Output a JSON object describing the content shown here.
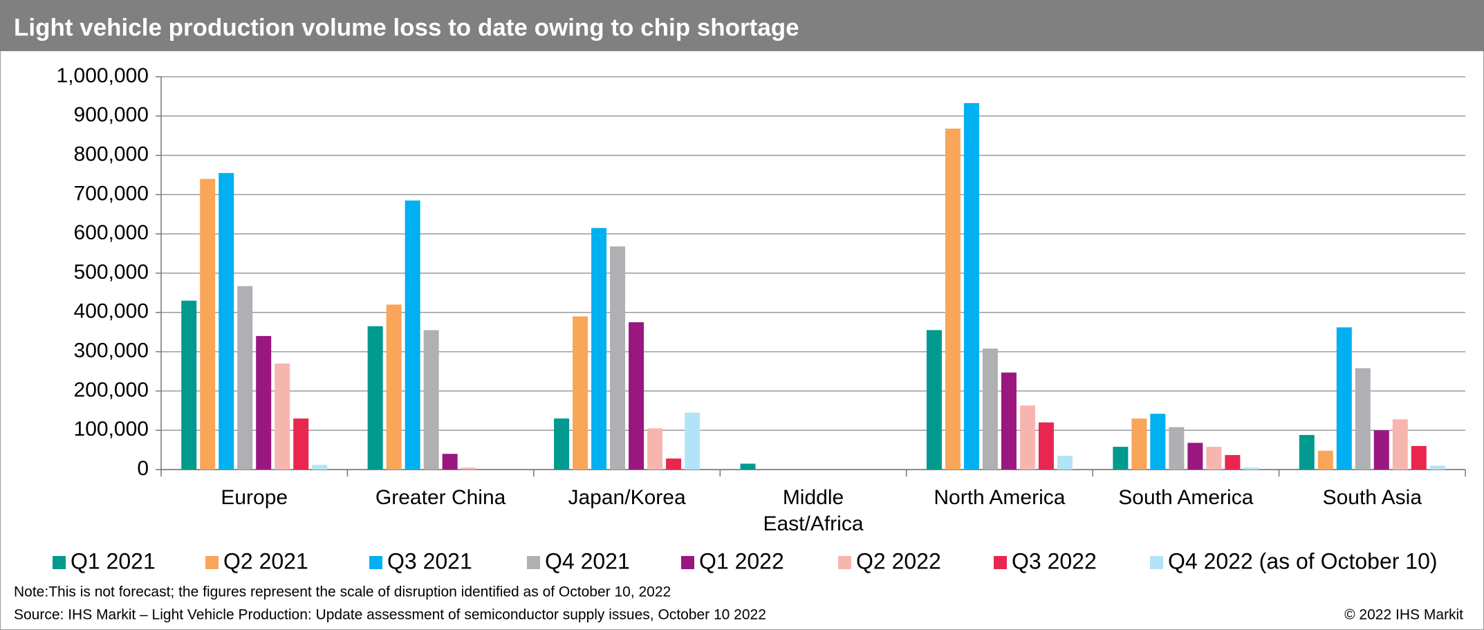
{
  "chart_data": {
    "type": "bar",
    "title": "Light vehicle production volume loss to date owing to chip shortage",
    "categories": [
      "Europe",
      "Greater China",
      "Japan/Korea",
      "Middle East/Africa",
      "North America",
      "South America",
      "South Asia"
    ],
    "series": [
      {
        "name": "Q1 2021",
        "color": "#009a8f",
        "values": [
          430000,
          365000,
          130000,
          15000,
          355000,
          58000,
          88000
        ]
      },
      {
        "name": "Q2 2021",
        "color": "#f9a65a",
        "values": [
          740000,
          420000,
          390000,
          0,
          868000,
          130000,
          48000
        ]
      },
      {
        "name": "Q3 2021",
        "color": "#00b0f0",
        "values": [
          755000,
          685000,
          615000,
          0,
          933000,
          142000,
          362000
        ]
      },
      {
        "name": "Q4 2021",
        "color": "#b0b0b4",
        "values": [
          467000,
          355000,
          568000,
          0,
          308000,
          108000,
          258000
        ]
      },
      {
        "name": "Q1 2022",
        "color": "#99177f",
        "values": [
          340000,
          40000,
          375000,
          0,
          247000,
          68000,
          100000
        ]
      },
      {
        "name": "Q2 2022",
        "color": "#f7b5b0",
        "values": [
          270000,
          5000,
          105000,
          0,
          163000,
          58000,
          128000
        ]
      },
      {
        "name": "Q3 2022",
        "color": "#e8264f",
        "values": [
          130000,
          0,
          28000,
          0,
          120000,
          37000,
          60000
        ]
      },
      {
        "name": "Q4 2022 (as of October 10)",
        "color": "#b3e3f7",
        "values": [
          12000,
          0,
          145000,
          0,
          35000,
          5000,
          10000
        ]
      }
    ],
    "ylim": [
      0,
      1000000
    ],
    "yticks": [
      0,
      {
        "value": 100000,
        "label": "100,000"
      },
      {
        "value": 200000,
        "label": "200,000"
      },
      {
        "value": 300000,
        "label": "300,000"
      },
      {
        "value": 400000,
        "label": "400,000"
      },
      {
        "value": 500000,
        "label": "500,000"
      },
      {
        "value": 600000,
        "label": "600,000"
      },
      {
        "value": 700000,
        "label": "700,000"
      },
      {
        "value": 800000,
        "label": "800,000"
      },
      {
        "value": 900000,
        "label": "900,000"
      },
      {
        "value": 1000000,
        "label": "1,000,000"
      }
    ],
    "grid": true,
    "note": "Note:This is not forecast; the figures represent the scale of disruption identified as of October 10, 2022",
    "source": "Source: IHS Markit – Light Vehicle Production: Update assessment of semiconductor supply issues, October 10 2022",
    "copyright": "© 2022 IHS Markit"
  }
}
